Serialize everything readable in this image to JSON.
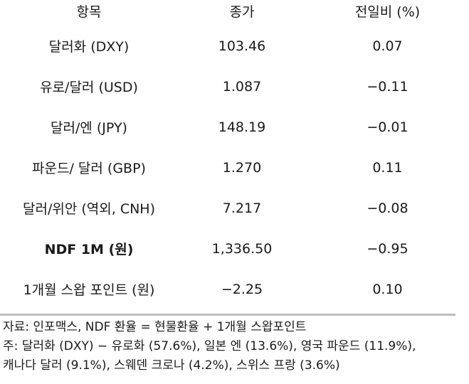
{
  "table": {
    "headers": [
      "항목",
      "종가",
      "전일비 (%)"
    ],
    "rows": [
      {
        "item": "달러화 (DXY)",
        "close": "103.46",
        "change": "0.07"
      },
      {
        "item": "유로/달러 (USD)",
        "close": "1.087",
        "change": "−0.11"
      },
      {
        "item": "달러/엔 (JPY)",
        "close": "148.19",
        "change": "−0.01"
      },
      {
        "item": "파운드/ 달러 (GBP)",
        "close": "1.270",
        "change": "0.11"
      },
      {
        "item": "달러/위안 (역외, CNH)",
        "close": "7.217",
        "change": "−0.08"
      },
      {
        "item": "NDF 1M (원)",
        "close": "1,336.50",
        "change": "−0.95"
      },
      {
        "item": "1개월 스왑 포인트 (원)",
        "close": "−2.25",
        "change": "0.10"
      }
    ]
  },
  "notes": {
    "source": "자료: 인포맥스, NDF 환율 = 현물환율 + 1개월 스왑포인트",
    "note_line1": "주: 달러화 (DXY) − 유로화 (57.6%), 일본 엔 (13.6%), 영국 파운드 (11.9%),",
    "note_line2": "캐나다 달러 (9.1%), 스웨덴 크로나 (4.2%), 스위스 프랑 (3.6%)"
  }
}
